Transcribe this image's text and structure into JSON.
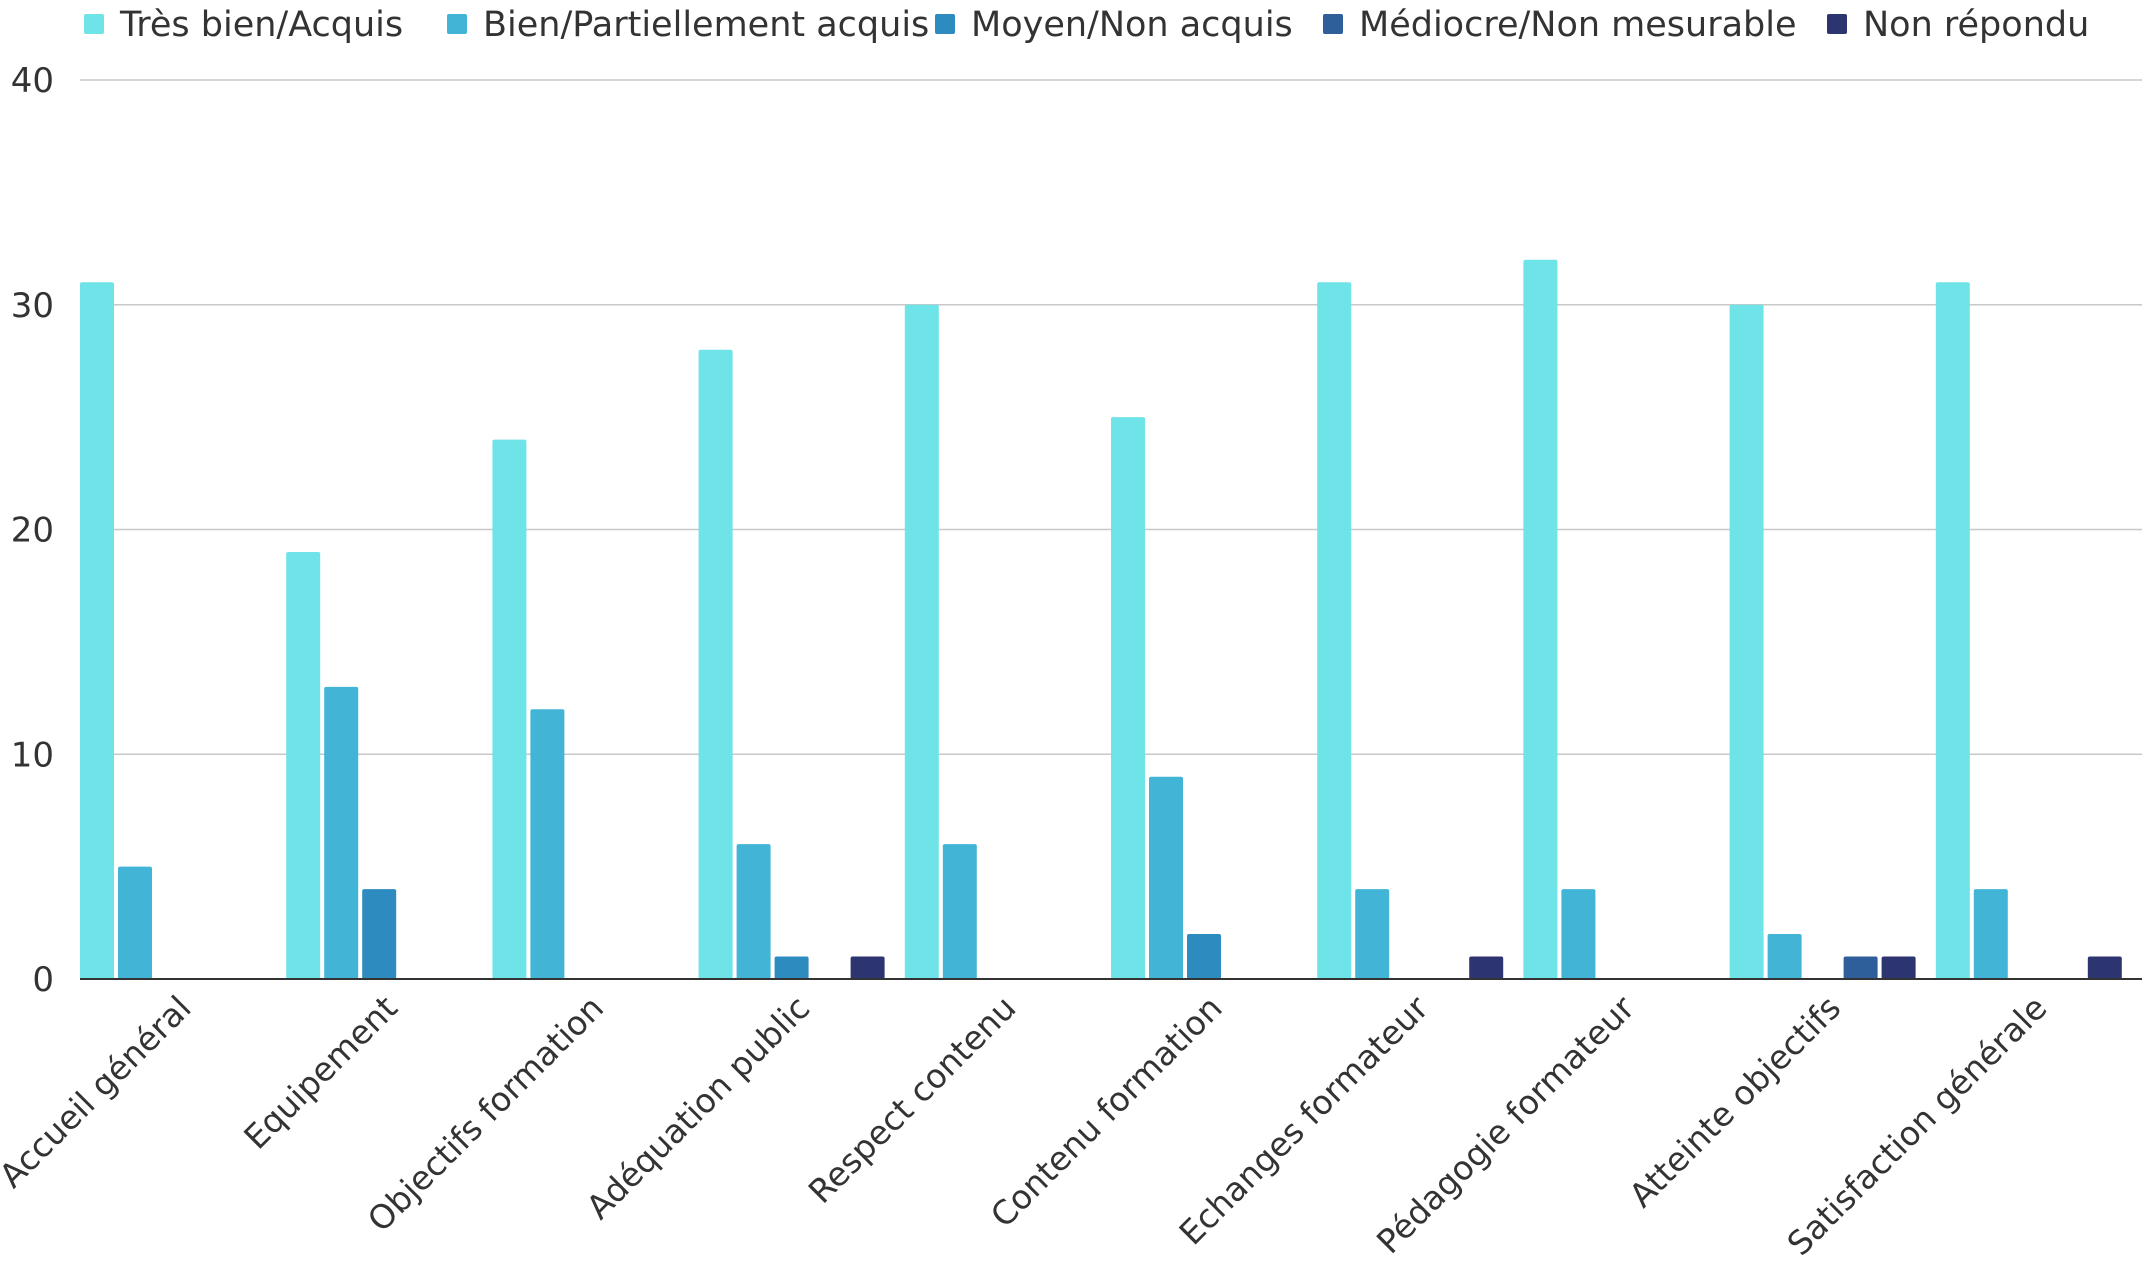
{
  "chart_data": {
    "type": "bar",
    "title": "",
    "xlabel": "",
    "ylabel": "",
    "ylim": [
      0,
      40
    ],
    "yticks": [
      0,
      10,
      20,
      30,
      40
    ],
    "grid": true,
    "legend_position": "top",
    "categories": [
      "Accueil général",
      "Equipement",
      "Objectifs formation",
      "Adéquation public",
      "Respect contenu",
      "Contenu formation",
      "Echanges formateur",
      "Pédagogie formateur",
      "Atteinte objectifs",
      "Satisfaction générale"
    ],
    "series": [
      {
        "name": "Très bien/Acquis",
        "color": "#6ee3e8",
        "values": [
          31,
          19,
          24,
          28,
          30,
          25,
          31,
          32,
          30,
          31
        ]
      },
      {
        "name": "Bien/Partiellement acquis",
        "color": "#42b4d6",
        "values": [
          5,
          13,
          12,
          6,
          6,
          9,
          4,
          4,
          2,
          4
        ]
      },
      {
        "name": "Moyen/Non acquis",
        "color": "#2e8bbf",
        "values": [
          0,
          4,
          0,
          1,
          0,
          2,
          0,
          0,
          0,
          0
        ]
      },
      {
        "name": "Médiocre/Non mesurable",
        "color": "#2f5f9b",
        "values": [
          0,
          0,
          0,
          0,
          0,
          0,
          0,
          0,
          1,
          0
        ]
      },
      {
        "name": "Non répondu",
        "color": "#2c3570",
        "values": [
          0,
          0,
          0,
          1,
          0,
          0,
          1,
          0,
          1,
          1
        ]
      }
    ]
  }
}
